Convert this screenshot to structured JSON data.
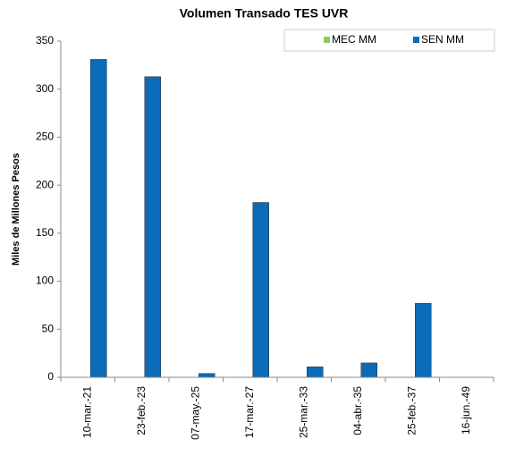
{
  "chart_data": {
    "type": "bar",
    "title": "Volumen Transado TES UVR",
    "y_label": "Miles de Millones Pesos",
    "categories": [
      "10-mar.-21",
      "23-feb.-23",
      "07-may.-25",
      "17-mar.-27",
      "25-mar.-33",
      "04-abr.-35",
      "25-feb.-37",
      "16-jun.-49"
    ],
    "series": [
      {
        "name": "MEC MM",
        "color": "#8ccc5a",
        "values": [
          0,
          0,
          0,
          0,
          0,
          0,
          0,
          0
        ]
      },
      {
        "name": "SEN MM",
        "color": "#0a6bb8",
        "values": [
          331,
          313,
          4,
          182,
          11,
          15,
          77,
          0
        ]
      }
    ],
    "ylim": [
      0,
      350
    ],
    "yticks": [
      0,
      50,
      100,
      150,
      200,
      250,
      300,
      350
    ],
    "grid": false,
    "legend": "top-right"
  }
}
